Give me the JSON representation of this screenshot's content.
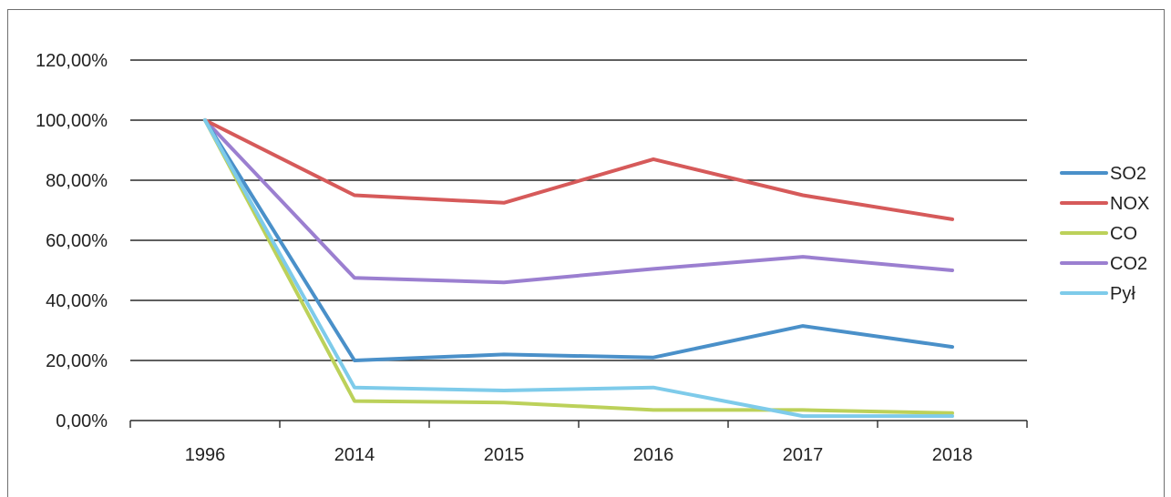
{
  "chart_data": {
    "type": "line",
    "categories": [
      "1996",
      "2014",
      "2015",
      "2016",
      "2017",
      "2018"
    ],
    "y_tick_labels": [
      "0,00%",
      "20,00%",
      "40,00%",
      "60,00%",
      "80,00%",
      "100,00%",
      "120,00%"
    ],
    "ylim": [
      0,
      120
    ],
    "grid": true,
    "legend_position": "right",
    "series": [
      {
        "name": "SO2",
        "color": "#4a90c9",
        "values": [
          100,
          20,
          22,
          21,
          31.5,
          24.5
        ]
      },
      {
        "name": "NOX",
        "color": "#d65a5a",
        "values": [
          100,
          75,
          72.5,
          87,
          75,
          67
        ]
      },
      {
        "name": "CO",
        "color": "#bcd15a",
        "values": [
          100,
          6.5,
          6,
          3.5,
          3.5,
          2.5
        ]
      },
      {
        "name": "CO2",
        "color": "#9b7fd0",
        "values": [
          100,
          47.5,
          46,
          50.5,
          54.5,
          50
        ]
      },
      {
        "name": "Pył",
        "color": "#7ecbea",
        "values": [
          100,
          11,
          10,
          11,
          1.5,
          1.5
        ]
      }
    ]
  }
}
